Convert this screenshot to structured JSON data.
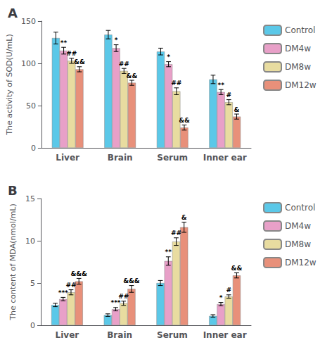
{
  "chart_data": [
    {
      "type": "bar",
      "title": "A",
      "ylabel": "The activity of SOD(U/mL)",
      "categories": [
        "Liver",
        "Brain",
        "Serum",
        "Inner ear"
      ],
      "series": [
        {
          "name": "Control",
          "color": "#5bc8e8",
          "values": [
            130,
            134,
            114,
            81
          ],
          "errors": [
            7,
            5,
            4,
            5
          ],
          "annotations": [
            null,
            null,
            null,
            null
          ]
        },
        {
          "name": "DM4w",
          "color": "#e8a0c8",
          "values": [
            115,
            118,
            99,
            66
          ],
          "errors": [
            4,
            4,
            3,
            3
          ],
          "annotations": [
            "**",
            "*",
            "*",
            "**"
          ]
        },
        {
          "name": "DM8w",
          "color": "#e8dca0",
          "values": [
            103,
            91,
            67,
            54
          ],
          "errors": [
            3,
            3,
            4,
            3
          ],
          "annotations": [
            "##",
            "##",
            "##",
            "#"
          ]
        },
        {
          "name": "DM12w",
          "color": "#e8907a",
          "values": [
            93,
            77,
            24,
            37
          ],
          "errors": [
            3,
            3,
            3,
            3
          ],
          "annotations": [
            "&&",
            "&&",
            "&&",
            "&"
          ]
        }
      ],
      "ylim": [
        0,
        150
      ],
      "yticks": [
        0,
        50,
        100,
        150
      ],
      "grid": false,
      "legend": "right"
    },
    {
      "type": "bar",
      "title": "B",
      "ylabel": "The content of MDA(nmol/mL)",
      "categories": [
        "Liver",
        "Brain",
        "Serum",
        "Inner ear"
      ],
      "series": [
        {
          "name": "Control",
          "color": "#5bc8e8",
          "values": [
            2.4,
            1.2,
            5.0,
            1.1
          ],
          "errors": [
            0.2,
            0.15,
            0.3,
            0.15
          ],
          "annotations": [
            null,
            null,
            null,
            null
          ]
        },
        {
          "name": "DM4w",
          "color": "#e8a0c8",
          "values": [
            3.1,
            1.9,
            7.6,
            2.5
          ],
          "errors": [
            0.2,
            0.2,
            0.5,
            0.2
          ],
          "annotations": [
            "***",
            "***",
            "**",
            "*"
          ]
        },
        {
          "name": "DM8w",
          "color": "#e8dca0",
          "values": [
            3.9,
            2.6,
            9.9,
            3.4
          ],
          "errors": [
            0.3,
            0.25,
            0.45,
            0.2
          ],
          "annotations": [
            "##",
            "##",
            "##",
            "#"
          ]
        },
        {
          "name": "DM12w",
          "color": "#e8907a",
          "values": [
            5.2,
            4.3,
            11.6,
            5.9
          ],
          "errors": [
            0.35,
            0.4,
            0.6,
            0.3
          ],
          "annotations": [
            "&&&",
            "&&&",
            "&",
            "&&"
          ]
        }
      ],
      "ylim": [
        0,
        15
      ],
      "yticks": [
        0,
        5,
        10,
        15
      ],
      "grid": false,
      "legend": "right"
    }
  ]
}
